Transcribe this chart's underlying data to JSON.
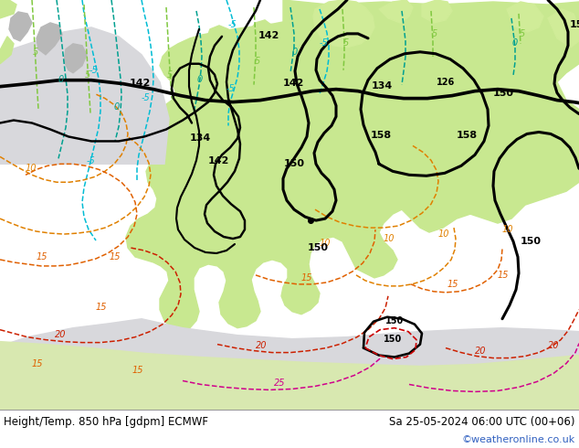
{
  "title_left": "Height/Temp. 850 hPa [gdpm] ECMWF",
  "title_right": "Sa 25-05-2024 06:00 UTC (00+06)",
  "credit": "©weatheronline.co.uk",
  "land_green_light": "#c8e8a0",
  "land_green_mid": "#b8dc88",
  "land_gray": "#b0b0b0",
  "sea_gray": "#d0d0d8",
  "sea_light": "#d8d8e0",
  "bg_white": "#e8e8e8",
  "black_contour_lw": 2.2,
  "temp_lw": 1.1,
  "fig_width": 6.34,
  "fig_height": 4.9,
  "dpi": 100,
  "label_color_left": "#000000",
  "label_color_right": "#000000",
  "credit_color": "#3060c0"
}
